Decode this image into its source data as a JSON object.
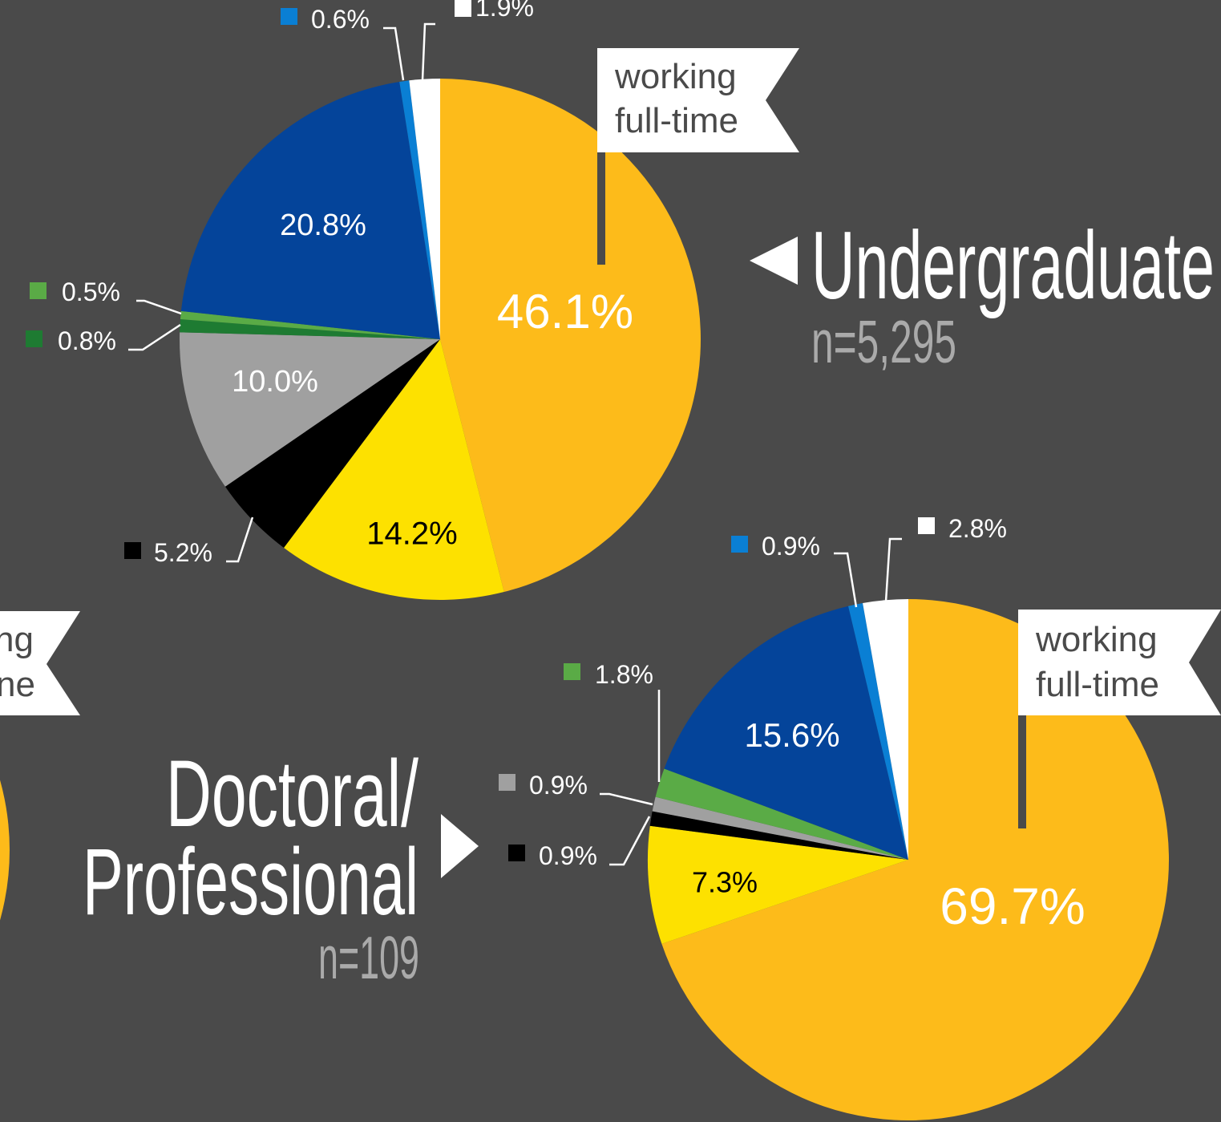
{
  "chart_data": [
    {
      "type": "pie",
      "title": "Undergraduate",
      "subtitle": "n=5,295",
      "annotation": [
        "working",
        "full-time"
      ],
      "values": [
        46.1,
        14.2,
        5.2,
        10.0,
        0.8,
        0.5,
        20.8,
        0.6,
        1.9
      ],
      "value_labels": [
        "46.1%",
        "14.2%",
        "5.2%",
        "10.0%",
        "0.8%",
        "0.5%",
        "20.8%",
        "0.6%",
        "1.9%"
      ],
      "colors": [
        "#fdbb1a",
        "#fde100",
        "#000000",
        "#a0a0a0",
        "#1e7b32",
        "#5aab46",
        "#04449a",
        "#0a7fd4",
        "#ffffff"
      ]
    },
    {
      "type": "pie",
      "title": [
        "Doctoral/",
        "Professional"
      ],
      "subtitle": "n=109",
      "annotation": [
        "working",
        "full-time"
      ],
      "values": [
        69.7,
        7.3,
        0.9,
        0.9,
        1.8,
        15.6,
        0.9,
        2.8
      ],
      "value_labels": [
        "69.7%",
        "7.3%",
        "0.9%",
        "0.9%",
        "1.8%",
        "15.6%",
        "0.9%",
        "2.8%"
      ],
      "colors": [
        "#fdbb1a",
        "#fde100",
        "#000000",
        "#a0a0a0",
        "#5aab46",
        "#04449a",
        "#0a7fd4",
        "#ffffff"
      ]
    }
  ],
  "cropped_annotation": [
    "ng",
    "ne"
  ]
}
